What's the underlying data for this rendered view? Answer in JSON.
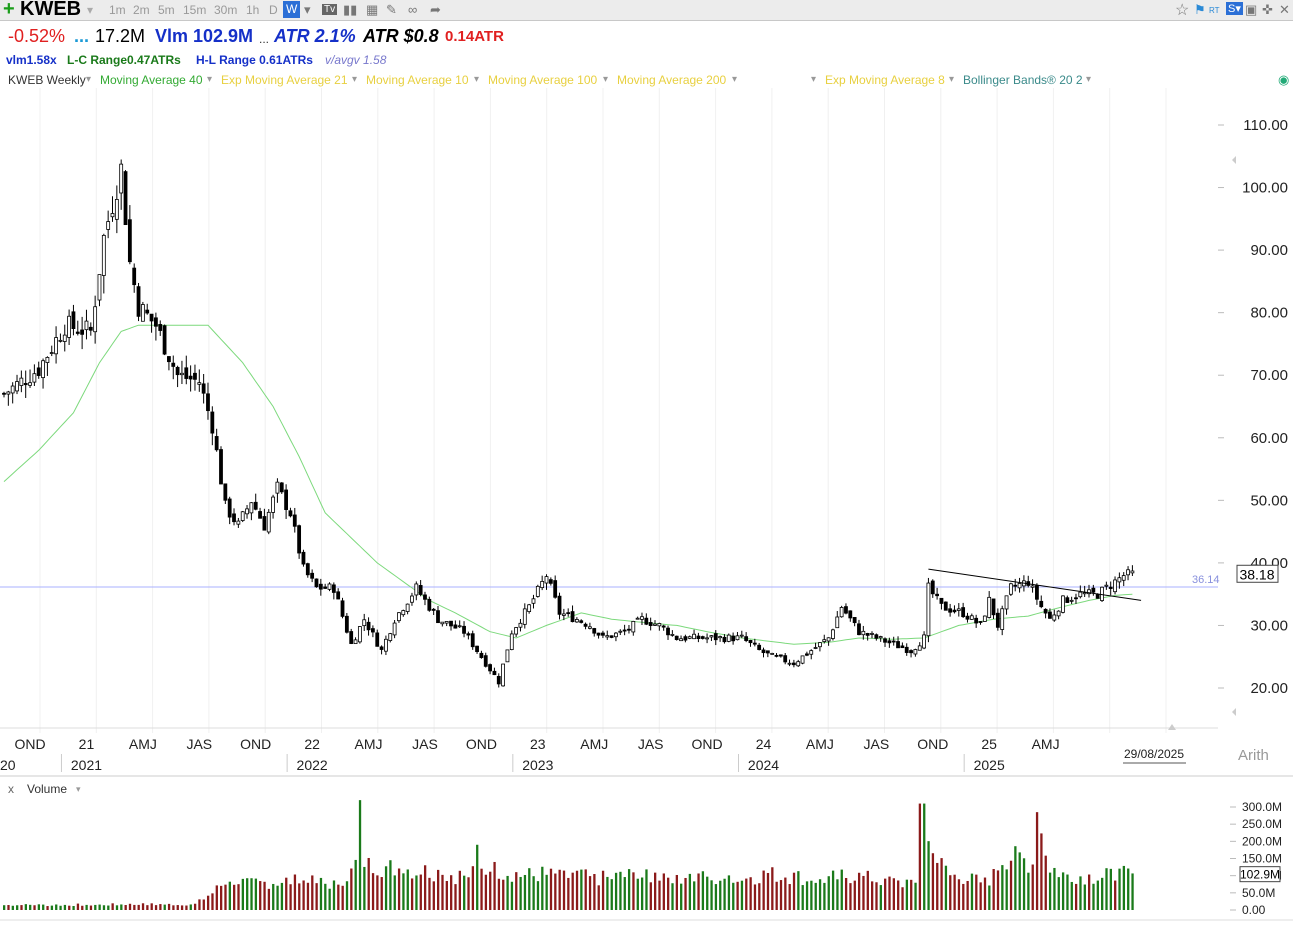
{
  "toolbar": {
    "symbol": "KWEB",
    "timeframes": [
      "1m",
      "2m",
      "5m",
      "15m",
      "30m",
      "1h",
      "D",
      "W"
    ],
    "active_timeframe": "W",
    "icons": [
      "plus-icon",
      "dropdown-icon",
      "tv-icon",
      "bars-icon",
      "grid-icon",
      "pencil-icon",
      "link-icon",
      "share-icon",
      "star-icon",
      "rt-flag-icon",
      "s-icon",
      "save-icon",
      "window-icon",
      "pin-icon",
      "close-icon"
    ]
  },
  "info": {
    "change": "-0.52%",
    "dots": "...",
    "volume": "17.2M",
    "vlm_label": "Vlm 102.9M",
    "dots2": "...",
    "atr_pct": "ATR 2.1%",
    "atr_dollar": "ATR $0.8",
    "atr_ratio": "0.14ATR",
    "vlm_ratio": "vlm1.58x",
    "lc_range": "L-C Range0.47ATRs",
    "hl_range": "H-L Range 0.61ATRs",
    "v_avgv": "v/avgv 1.58"
  },
  "legend": {
    "chart_name": "KWEB Weekly",
    "items": [
      {
        "label": "Moving Average 40",
        "color": "#33aa33"
      },
      {
        "label": "Exp Moving Average 21",
        "color": "#ffdd44"
      },
      {
        "label": "Moving Average 10",
        "color": "#ffdd44"
      },
      {
        "label": "Moving Average 100",
        "color": "#ffdd44"
      },
      {
        "label": "Moving Average 200",
        "color": "#ffdd44"
      },
      {
        "label": "Exp Moving Average 8",
        "color": "#ffdd44"
      },
      {
        "label": "Bollinger Bands® 20 2",
        "color": "#3a8a8a"
      }
    ]
  },
  "chart_data": [
    {
      "type": "candlestick",
      "title": "KWEB Weekly",
      "y_ticks": [
        "110.00",
        "100.00",
        "90.00",
        "80.00",
        "70.00",
        "60.00",
        "50.00",
        "40.00",
        "30.00",
        "20.00"
      ],
      "ylim": [
        14.7,
        116.5
      ],
      "scale": "Arith",
      "horizontal_line": {
        "value": 36.14,
        "label": "36.14"
      },
      "last_price": "38.18",
      "last_date": "29/08/2025",
      "x_start_label": "20",
      "x_ticks": [
        {
          "label": "OND",
          "week": 6
        },
        {
          "label": "21",
          "week": 19,
          "year": "2021"
        },
        {
          "label": "AMJ",
          "week": 32
        },
        {
          "label": "JAS",
          "week": 45
        },
        {
          "label": "OND",
          "week": 58
        },
        {
          "label": "22",
          "week": 71,
          "year": "2022"
        },
        {
          "label": "AMJ",
          "week": 84
        },
        {
          "label": "JAS",
          "week": 97
        },
        {
          "label": "OND",
          "week": 110
        },
        {
          "label": "23",
          "week": 123,
          "year": "2023"
        },
        {
          "label": "AMJ",
          "week": 136
        },
        {
          "label": "JAS",
          "week": 149
        },
        {
          "label": "OND",
          "week": 162
        },
        {
          "label": "24",
          "week": 175,
          "year": "2024"
        },
        {
          "label": "AMJ",
          "week": 188
        },
        {
          "label": "JAS",
          "week": 201
        },
        {
          "label": "OND",
          "week": 214
        },
        {
          "label": "25",
          "week": 227,
          "year": "2025"
        },
        {
          "label": "AMJ",
          "week": 240
        }
      ],
      "close_keypoints": [
        [
          0,
          67
        ],
        [
          8,
          71
        ],
        [
          14,
          78
        ],
        [
          20,
          77
        ],
        [
          23,
          92
        ],
        [
          27,
          103
        ],
        [
          29,
          88
        ],
        [
          31,
          81
        ],
        [
          35,
          78
        ],
        [
          40,
          70
        ],
        [
          45,
          69
        ],
        [
          48,
          62
        ],
        [
          51,
          49
        ],
        [
          54,
          46
        ],
        [
          57,
          50
        ],
        [
          60,
          46
        ],
        [
          63,
          52
        ],
        [
          66,
          48
        ],
        [
          69,
          39
        ],
        [
          72,
          36
        ],
        [
          76,
          36
        ],
        [
          80,
          27
        ],
        [
          83,
          31
        ],
        [
          87,
          26
        ],
        [
          90,
          31
        ],
        [
          95,
          36
        ],
        [
          100,
          31
        ],
        [
          106,
          29
        ],
        [
          111,
          24
        ],
        [
          114,
          21
        ],
        [
          117,
          29
        ],
        [
          121,
          33
        ],
        [
          125,
          38
        ],
        [
          128,
          32
        ],
        [
          132,
          31
        ],
        [
          135,
          30
        ],
        [
          138,
          28
        ],
        [
          143,
          29
        ],
        [
          147,
          31
        ],
        [
          151,
          30
        ],
        [
          155,
          28
        ],
        [
          160,
          28
        ],
        [
          166,
          28
        ],
        [
          170,
          28
        ],
        [
          174,
          26
        ],
        [
          177,
          25
        ],
        [
          182,
          24
        ],
        [
          186,
          26
        ],
        [
          190,
          28
        ],
        [
          193,
          33
        ],
        [
          197,
          29
        ],
        [
          201,
          28
        ],
        [
          205,
          27
        ],
        [
          209,
          26
        ],
        [
          212,
          28
        ],
        [
          213,
          36
        ],
        [
          216,
          33
        ],
        [
          221,
          32
        ],
        [
          225,
          30
        ],
        [
          227,
          34
        ],
        [
          229,
          30
        ],
        [
          232,
          36
        ],
        [
          236,
          37
        ],
        [
          239,
          33
        ],
        [
          241,
          31
        ],
        [
          244,
          34
        ],
        [
          248,
          35
        ],
        [
          252,
          35
        ],
        [
          254,
          36
        ],
        [
          256,
          37
        ],
        [
          258,
          38
        ],
        [
          260,
          38.2
        ]
      ],
      "ma40_keypoints": [
        [
          0,
          53
        ],
        [
          8,
          58
        ],
        [
          16,
          64
        ],
        [
          22,
          72
        ],
        [
          27,
          77
        ],
        [
          31,
          78
        ],
        [
          40,
          78
        ],
        [
          47,
          78
        ],
        [
          55,
          72
        ],
        [
          62,
          65
        ],
        [
          68,
          57
        ],
        [
          74,
          48
        ],
        [
          80,
          44
        ],
        [
          86,
          40
        ],
        [
          92,
          37
        ],
        [
          98,
          34
        ],
        [
          104,
          32
        ],
        [
          112,
          29
        ],
        [
          118,
          28
        ],
        [
          125,
          30
        ],
        [
          133,
          32
        ],
        [
          140,
          31
        ],
        [
          147,
          30.5
        ],
        [
          155,
          30
        ],
        [
          162,
          29
        ],
        [
          170,
          28
        ],
        [
          176,
          27.5
        ],
        [
          182,
          27
        ],
        [
          190,
          27.3
        ],
        [
          197,
          28
        ],
        [
          205,
          27.8
        ],
        [
          212,
          28
        ],
        [
          220,
          30
        ],
        [
          228,
          31
        ],
        [
          236,
          31.5
        ],
        [
          244,
          33
        ],
        [
          250,
          34
        ],
        [
          256,
          34.8
        ],
        [
          260,
          35
        ]
      ],
      "trendline": [
        [
          213,
          39
        ],
        [
          262,
          34
        ]
      ],
      "series": [
        {
          "name": "Moving Average 40",
          "color": "#33aa33"
        }
      ]
    },
    {
      "type": "bar",
      "title": "Volume",
      "y_ticks": [
        "300.0M",
        "250.0M",
        "200.0M",
        "150.0M",
        "100.0M",
        "50.0M",
        "0.00"
      ],
      "ylim": [
        0,
        300
      ],
      "last_volume": "102.9M",
      "volume_keypoints": [
        [
          0,
          14
        ],
        [
          30,
          16
        ],
        [
          44,
          17
        ],
        [
          48,
          50
        ],
        [
          52,
          95
        ],
        [
          56,
          75
        ],
        [
          60,
          80
        ],
        [
          66,
          85
        ],
        [
          72,
          80
        ],
        [
          76,
          75
        ],
        [
          80,
          110
        ],
        [
          82,
          160
        ],
        [
          84,
          130
        ],
        [
          88,
          125
        ],
        [
          92,
          120
        ],
        [
          96,
          115
        ],
        [
          100,
          110
        ],
        [
          104,
          100
        ],
        [
          108,
          105
        ],
        [
          112,
          120
        ],
        [
          116,
          110
        ],
        [
          120,
          100
        ],
        [
          124,
          105
        ],
        [
          128,
          95
        ],
        [
          132,
          100
        ],
        [
          136,
          90
        ],
        [
          140,
          95
        ],
        [
          144,
          100
        ],
        [
          148,
          95
        ],
        [
          152,
          105
        ],
        [
          156,
          100
        ],
        [
          160,
          95
        ],
        [
          164,
          90
        ],
        [
          168,
          100
        ],
        [
          172,
          95
        ],
        [
          176,
          105
        ],
        [
          180,
          100
        ],
        [
          184,
          95
        ],
        [
          188,
          90
        ],
        [
          192,
          95
        ],
        [
          196,
          100
        ],
        [
          200,
          90
        ],
        [
          204,
          85
        ],
        [
          208,
          80
        ],
        [
          211,
          90
        ],
        [
          212,
          230
        ],
        [
          214,
          160
        ],
        [
          216,
          130
        ],
        [
          218,
          100
        ],
        [
          220,
          95
        ],
        [
          224,
          85
        ],
        [
          226,
          80
        ],
        [
          228,
          100
        ],
        [
          230,
          150
        ],
        [
          232,
          155
        ],
        [
          234,
          145
        ],
        [
          236,
          140
        ],
        [
          238,
          130
        ],
        [
          239,
          225
        ],
        [
          241,
          125
        ],
        [
          244,
          105
        ],
        [
          248,
          100
        ],
        [
          252,
          95
        ],
        [
          256,
          102.9
        ],
        [
          260,
          102.9
        ]
      ],
      "spikes": [
        [
          82,
          320
        ],
        [
          211,
          310
        ],
        [
          212,
          310
        ],
        [
          238,
          285
        ],
        [
          109,
          190
        ]
      ]
    }
  ]
}
